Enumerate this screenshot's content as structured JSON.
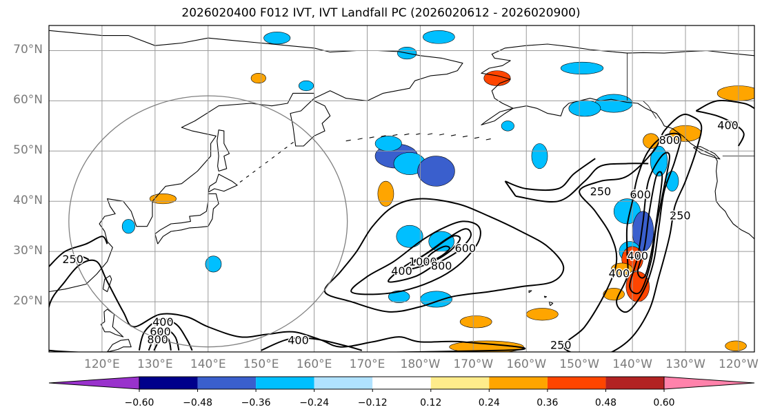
{
  "title": "2026020400 F012 IVT, IVT Landfall PC (2026020612 - 2026020900)",
  "map": {
    "projection": "equirectangular",
    "lon_range": [
      110,
      243
    ],
    "lat_range": [
      10,
      75
    ],
    "lat_labels": [
      "70°N",
      "60°N",
      "50°N",
      "40°N",
      "30°N",
      "20°N"
    ],
    "lat_values": [
      70,
      60,
      50,
      40,
      30,
      20
    ],
    "lon_labels": [
      "120°E",
      "130°E",
      "140°E",
      "150°E",
      "160°E",
      "170°E",
      "180°W",
      "170°W",
      "160°W",
      "150°W",
      "140°W",
      "130°W",
      "120°W"
    ],
    "lon_values": [
      120,
      130,
      140,
      150,
      160,
      170,
      180,
      190,
      200,
      210,
      220,
      230,
      240
    ],
    "grid": true,
    "range_ring": {
      "center_lon": 140,
      "center_lat": 36,
      "radius_deg": 25
    }
  },
  "ivt_contours": {
    "levels": [
      250,
      400,
      600,
      800,
      1000
    ],
    "labels": [
      {
        "text": "250",
        "lon": 114.5,
        "lat": 28.3
      },
      {
        "text": "400",
        "lon": 157,
        "lat": 12.2
      },
      {
        "text": "400",
        "lon": 131.5,
        "lat": 15.8
      },
      {
        "text": "600",
        "lon": 131,
        "lat": 13.9
      },
      {
        "text": "800",
        "lon": 130.5,
        "lat": 12.3
      },
      {
        "text": "400",
        "lon": 176.5,
        "lat": 26
      },
      {
        "text": "1000",
        "lon": 180.5,
        "lat": 27.8
      },
      {
        "text": "800",
        "lon": 184,
        "lat": 27
      },
      {
        "text": "600",
        "lon": 188.5,
        "lat": 30.5
      },
      {
        "text": "250",
        "lon": 206.5,
        "lat": 11.2
      },
      {
        "text": "250",
        "lon": 214,
        "lat": 41.8
      },
      {
        "text": "600",
        "lon": 221.5,
        "lat": 41.2
      },
      {
        "text": "400",
        "lon": 217.5,
        "lat": 25.5
      },
      {
        "text": "400",
        "lon": 221,
        "lat": 29
      },
      {
        "text": "800",
        "lon": 227,
        "lat": 52
      },
      {
        "text": "250",
        "lon": 229,
        "lat": 37
      },
      {
        "text": "400",
        "lon": 238,
        "lat": 55
      }
    ]
  },
  "pc_shading": [
    {
      "lon": 175.5,
      "lat": 49,
      "rx": 4,
      "ry": 2.4,
      "v": -0.4
    },
    {
      "lon": 178,
      "lat": 47.5,
      "rx": 3,
      "ry": 2.2,
      "v": -0.32
    },
    {
      "lon": 183,
      "lat": 46,
      "rx": 3.5,
      "ry": 3,
      "v": -0.38
    },
    {
      "lon": 174,
      "lat": 51.5,
      "rx": 2.5,
      "ry": 1.5,
      "v": -0.3
    },
    {
      "lon": 216.5,
      "lat": 59.5,
      "rx": 3.5,
      "ry": 1.8,
      "v": -0.35
    },
    {
      "lon": 211,
      "lat": 58.5,
      "rx": 3,
      "ry": 1.6,
      "v": -0.3
    },
    {
      "lon": 219,
      "lat": 38,
      "rx": 2.5,
      "ry": 2.5,
      "v": -0.28
    },
    {
      "lon": 222,
      "lat": 34,
      "rx": 2,
      "ry": 4,
      "v": -0.42
    },
    {
      "lon": 219.5,
      "lat": 30,
      "rx": 2,
      "ry": 2,
      "v": -0.3
    },
    {
      "lon": 225,
      "lat": 48,
      "rx": 1.6,
      "ry": 3,
      "v": -0.3
    },
    {
      "lon": 227.5,
      "lat": 44,
      "rx": 1.2,
      "ry": 2,
      "v": -0.28
    },
    {
      "lon": 202.5,
      "lat": 49,
      "rx": 1.5,
      "ry": 2.5,
      "v": -0.26
    },
    {
      "lon": 178,
      "lat": 33,
      "rx": 2.5,
      "ry": 2.2,
      "v": -0.3
    },
    {
      "lon": 184,
      "lat": 32,
      "rx": 2.4,
      "ry": 2,
      "v": -0.28
    },
    {
      "lon": 183,
      "lat": 20.5,
      "rx": 3,
      "ry": 1.6,
      "v": -0.28
    },
    {
      "lon": 176,
      "lat": 21,
      "rx": 2,
      "ry": 1.2,
      "v": -0.26
    },
    {
      "lon": 153,
      "lat": 72.5,
      "rx": 2.5,
      "ry": 1.2,
      "v": -0.26
    },
    {
      "lon": 183.5,
      "lat": 72.7,
      "rx": 3,
      "ry": 1.3,
      "v": -0.3
    },
    {
      "lon": 210.5,
      "lat": 66.5,
      "rx": 4,
      "ry": 1.2,
      "v": -0.26
    },
    {
      "lon": 141,
      "lat": 27.5,
      "rx": 1.5,
      "ry": 1.6,
      "v": -0.28
    },
    {
      "lon": 125,
      "lat": 35,
      "rx": 1.2,
      "ry": 1.4,
      "v": -0.26
    },
    {
      "lon": 177.5,
      "lat": 69.5,
      "rx": 1.8,
      "ry": 1.2,
      "v": -0.26
    },
    {
      "lon": 158.5,
      "lat": 63,
      "rx": 1.4,
      "ry": 1,
      "v": -0.26
    },
    {
      "lon": 196.5,
      "lat": 55,
      "rx": 1.2,
      "ry": 1,
      "v": -0.26
    },
    {
      "lon": 220,
      "lat": 28.5,
      "rx": 2,
      "ry": 2.5,
      "v": 0.44
    },
    {
      "lon": 221,
      "lat": 23,
      "rx": 2.2,
      "ry": 3,
      "v": 0.42
    },
    {
      "lon": 216.5,
      "lat": 21.5,
      "rx": 2,
      "ry": 1.2,
      "v": 0.3
    },
    {
      "lon": 218,
      "lat": 26.5,
      "rx": 2,
      "ry": 1.2,
      "v": 0.3
    },
    {
      "lon": 194.5,
      "lat": 64.5,
      "rx": 2.5,
      "ry": 1.5,
      "v": 0.36
    },
    {
      "lon": 203,
      "lat": 17.5,
      "rx": 3,
      "ry": 1.2,
      "v": 0.32
    },
    {
      "lon": 190.5,
      "lat": 16,
      "rx": 3,
      "ry": 1.2,
      "v": 0.3
    },
    {
      "lon": 192.5,
      "lat": 11,
      "rx": 7,
      "ry": 1.2,
      "v": 0.3
    },
    {
      "lon": 240,
      "lat": 61.5,
      "rx": 4,
      "ry": 1.5,
      "v": 0.3
    },
    {
      "lon": 230,
      "lat": 53.5,
      "rx": 3,
      "ry": 1.6,
      "v": 0.26
    },
    {
      "lon": 173.5,
      "lat": 41.5,
      "rx": 1.5,
      "ry": 2.5,
      "v": 0.26
    },
    {
      "lon": 131.5,
      "lat": 40.5,
      "rx": 2.5,
      "ry": 1,
      "v": 0.26
    },
    {
      "lon": 149.5,
      "lat": 64.5,
      "rx": 1.4,
      "ry": 1,
      "v": 0.26
    },
    {
      "lon": 239.5,
      "lat": 11.2,
      "rx": 2,
      "ry": 1,
      "v": 0.3
    },
    {
      "lon": 223.5,
      "lat": 52,
      "rx": 1.5,
      "ry": 1.5,
      "v": 0.26
    }
  ],
  "colorbar": {
    "colors": [
      "#9932cc",
      "#00008b",
      "#3a5fcd",
      "#00bfff",
      "#b0e2ff",
      "#ffffff",
      "#ffec8b",
      "#ffa500",
      "#ff4500",
      "#b22222",
      "#ff82ab"
    ],
    "tick_labels": [
      "−0.60",
      "−0.48",
      "−0.36",
      "−0.24",
      "−0.12",
      "0.12",
      "0.24",
      "0.36",
      "0.48",
      "0.60"
    ],
    "bounds": [
      -0.6,
      -0.48,
      -0.36,
      -0.24,
      -0.12,
      0.12,
      0.24,
      0.36,
      0.48,
      0.6
    ]
  }
}
